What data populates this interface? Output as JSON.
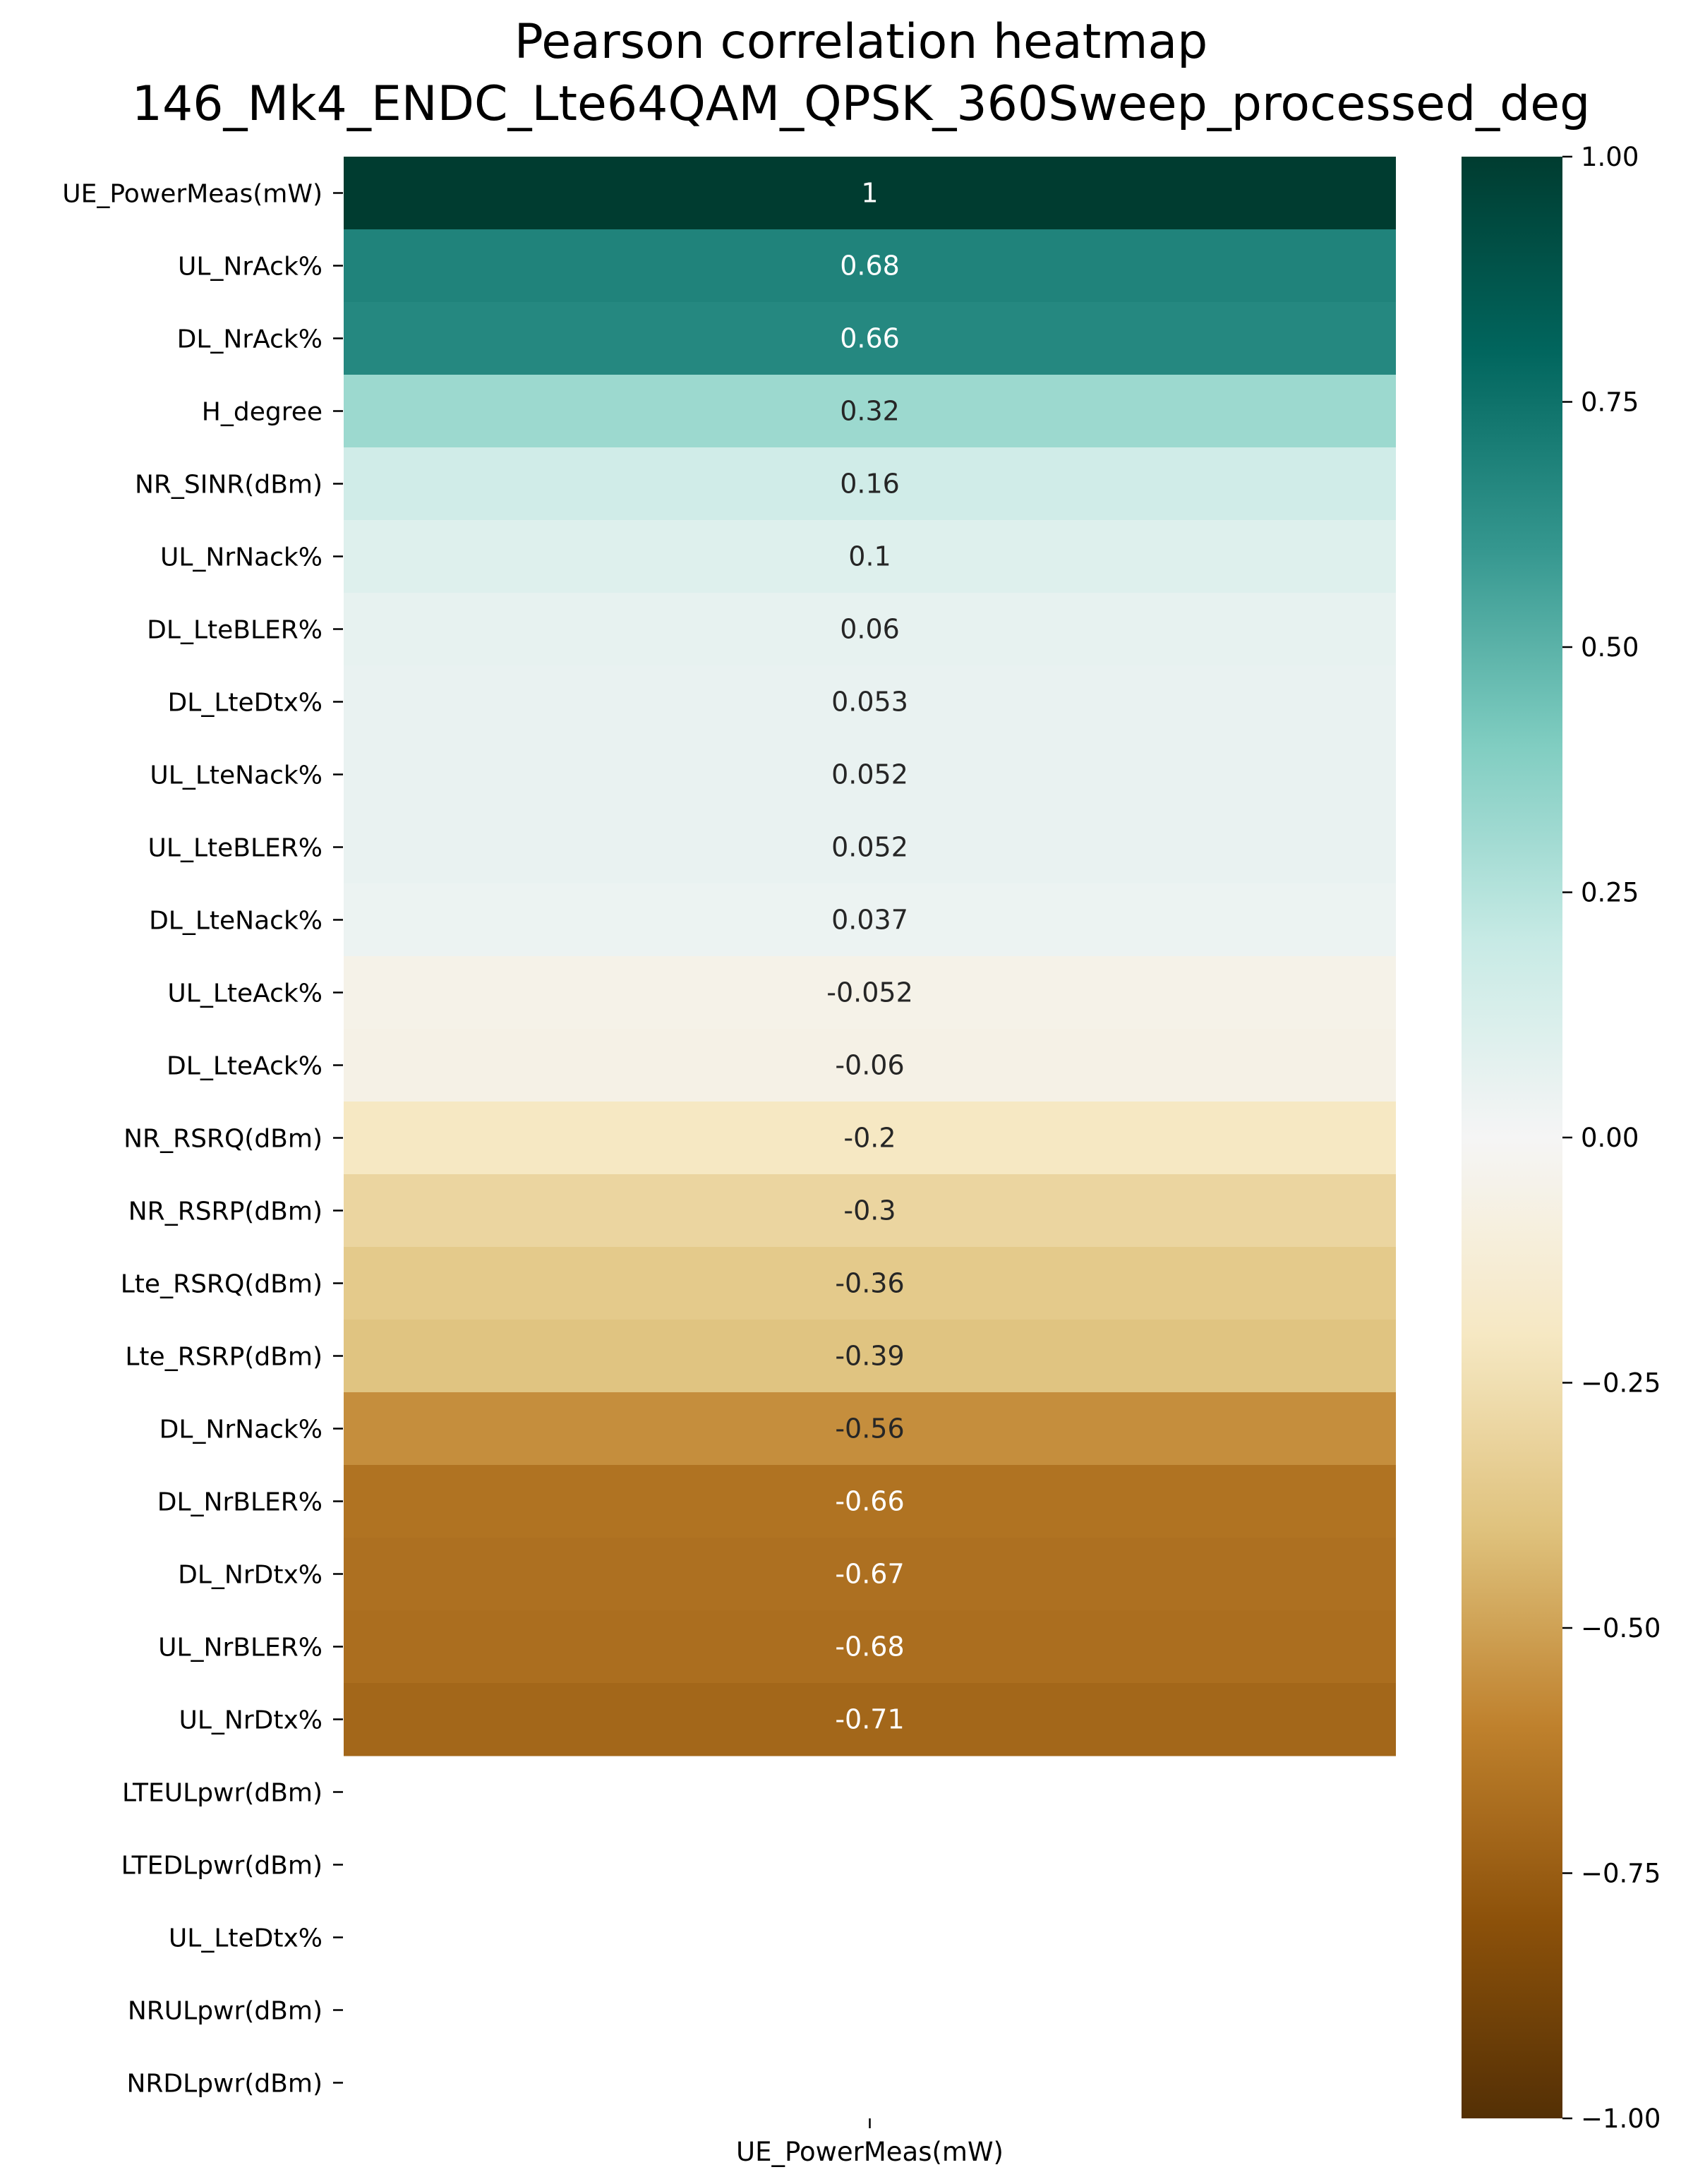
{
  "chart_data": {
    "type": "heatmap",
    "title": "Pearson correlation heatmap",
    "subtitle": "146_Mk4_ENDC_Lte64QAM_QPSK_360Sweep_processed_deg",
    "x_categories": [
      "UE_PowerMeas(mW)"
    ],
    "y_categories": [
      "UE_PowerMeas(mW)",
      "UL_NrAck%",
      "DL_NrAck%",
      "H_degree",
      "NR_SINR(dBm)",
      "UL_NrNack%",
      "DL_LteBLER%",
      "DL_LteDtx%",
      "UL_LteNack%",
      "UL_LteBLER%",
      "DL_LteNack%",
      "UL_LteAck%",
      "DL_LteAck%",
      "NR_RSRQ(dBm)",
      "NR_RSRP(dBm)",
      "Lte_RSRQ(dBm)",
      "Lte_RSRP(dBm)",
      "DL_NrNack%",
      "DL_NrBLER%",
      "DL_NrDtx%",
      "UL_NrBLER%",
      "UL_NrDtx%",
      "LTEULpwr(dBm)",
      "LTEDLpwr(dBm) ",
      "UL_LteDtx%",
      "NRULpwr(dBm)",
      "NRDLpwr(dBm)"
    ],
    "values": [
      1,
      0.68,
      0.66,
      0.32,
      0.16,
      0.1,
      0.06,
      0.053,
      0.052,
      0.052,
      0.037,
      -0.052,
      -0.06,
      -0.2,
      -0.3,
      -0.36,
      -0.39,
      -0.56,
      -0.66,
      -0.67,
      -0.68,
      -0.71,
      null,
      null,
      null,
      null,
      null
    ],
    "annotations": [
      "1",
      "0.68",
      "0.66",
      "0.32",
      "0.16",
      "0.1",
      "0.06",
      "0.053",
      "0.052",
      "0.052",
      "0.037",
      "-0.052",
      "-0.06",
      "-0.2",
      "-0.3",
      "-0.36",
      "-0.39",
      "-0.56",
      "-0.66",
      "-0.67",
      "-0.68",
      "-0.71",
      "",
      "",
      "",
      "",
      ""
    ],
    "colormap": "BrBG",
    "vmin": -1,
    "vmax": 1,
    "colorbar_ticks": [
      1.0,
      0.75,
      0.5,
      0.25,
      0.0,
      -0.25,
      -0.5,
      -0.75,
      -1.0
    ],
    "colorbar_tick_labels": [
      "1.00",
      "0.75",
      "0.50",
      "0.25",
      "0.00",
      "−0.25",
      "−0.50",
      "−0.75",
      "−1.00"
    ],
    "grid": false,
    "legend": "colorbar-right"
  }
}
